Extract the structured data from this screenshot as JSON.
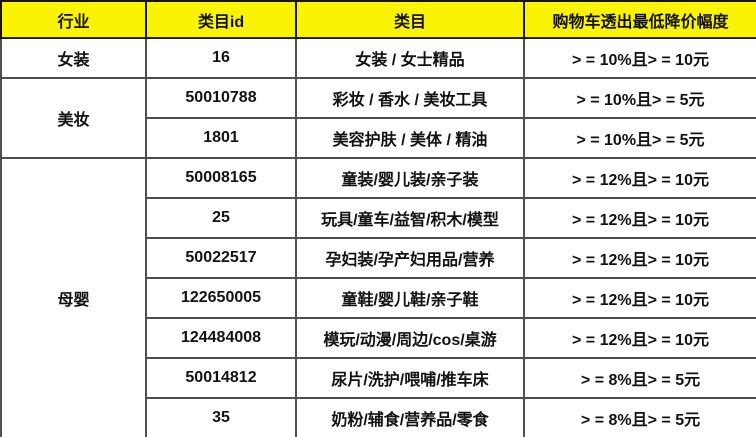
{
  "chart_data": {
    "type": "table",
    "columns": [
      "行业",
      "类目id",
      "类目",
      "购物车透出最低降价幅度"
    ],
    "groups": [
      {
        "industry": "女装",
        "rows": [
          {
            "id": "16",
            "category": "女装 / 女士精品",
            "discount": "> = 10%且> = 10元"
          }
        ]
      },
      {
        "industry": "美妆",
        "rows": [
          {
            "id": "50010788",
            "category": "彩妆 / 香水 / 美妆工具",
            "discount": "> = 10%且> = 5元"
          },
          {
            "id": "1801",
            "category": "美容护肤 / 美体 / 精油",
            "discount": "> = 10%且> = 5元"
          }
        ]
      },
      {
        "industry": "母婴",
        "rows": [
          {
            "id": "50008165",
            "category": "童装/婴儿装/亲子装",
            "discount": "> = 12%且> = 10元"
          },
          {
            "id": "25",
            "category": "玩具/童车/益智/积木/模型",
            "discount": "> = 12%且> = 10元"
          },
          {
            "id": "50022517",
            "category": "孕妇装/孕产妇用品/营养",
            "discount": "> = 12%且> = 10元"
          },
          {
            "id": "122650005",
            "category": "童鞋/婴儿鞋/亲子鞋",
            "discount": "> = 12%且> = 10元"
          },
          {
            "id": "124484008",
            "category": "模玩/动漫/周边/cos/桌游",
            "discount": "> = 12%且> = 10元"
          },
          {
            "id": "50014812",
            "category": "尿片/洗护/喂哺/推车床",
            "discount": "> = 8%且> = 5元"
          },
          {
            "id": "35",
            "category": "奶粉/辅食/营养品/零食",
            "discount": "> = 8%且> = 5元"
          }
        ]
      }
    ]
  },
  "colors": {
    "header_bg": "#faf303",
    "header_border": "#141414",
    "grid_line": "#4f4f4f",
    "outer_border": "#2a2a2a",
    "body_text": "#121212"
  }
}
